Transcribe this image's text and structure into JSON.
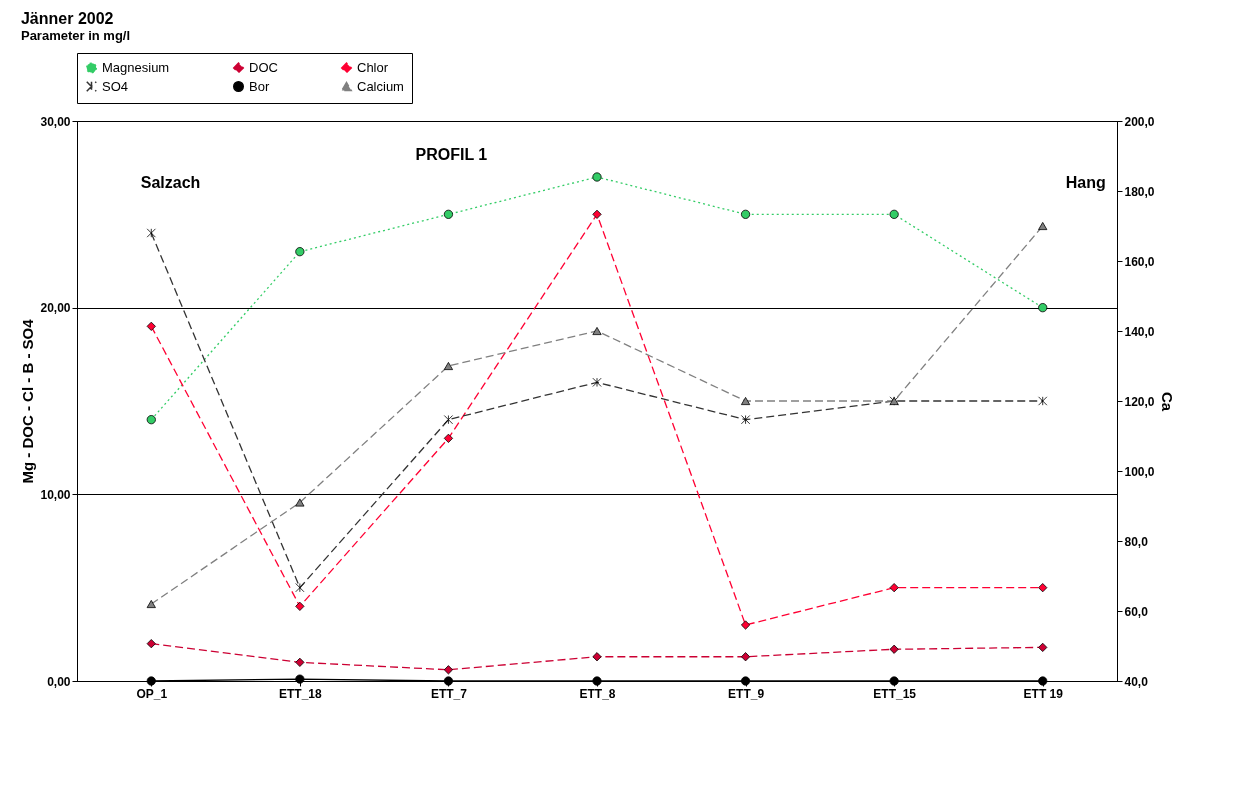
{
  "chart_data": {
    "type": "line",
    "title": "Jänner 2002",
    "subtitle": "Parameter in mg/l",
    "ylabel": "Mg - DOC - Cl - B - SO4",
    "y2label": "Ca",
    "categories": [
      "OP_1",
      "ETT_18",
      "ETT_7",
      "ETT_8",
      "ETT_9",
      "ETT_15",
      "ETT 19"
    ],
    "series": [
      {
        "name": "Magnesium",
        "color": "#33cc66",
        "marker": "circle",
        "line_style": "dotted",
        "values": [
          14,
          23,
          25,
          27,
          25,
          25,
          20
        ]
      },
      {
        "name": "DOC",
        "color": "#cc0033",
        "marker": "diamond",
        "line_style": "dashed",
        "values": [
          2.0,
          1.0,
          0.6,
          1.3,
          1.3,
          1.7,
          1.8
        ]
      },
      {
        "name": "Chlor",
        "color": "#ff0033",
        "marker": "diamond",
        "line_style": "dashed",
        "values": [
          19,
          4,
          13,
          25,
          3,
          5,
          5
        ]
      },
      {
        "name": "SO4",
        "color": "#333333",
        "marker": "cross",
        "line_style": "dashed",
        "values": [
          24,
          5,
          14,
          16,
          14,
          15,
          15
        ]
      },
      {
        "name": "Bor",
        "color": "#000000",
        "marker": "circle",
        "line_style": "solid",
        "values": [
          0,
          0.1,
          0,
          0,
          0,
          0,
          0
        ]
      },
      {
        "name": "Calcium",
        "color": "#808080",
        "marker": "triangle",
        "line_style": "dashed",
        "axis": "y2",
        "values": [
          62,
          91,
          130,
          140,
          120,
          120,
          170
        ]
      }
    ],
    "ylim": [
      0,
      30
    ],
    "yticks": [
      {
        "value": 0,
        "label": "0,00"
      },
      {
        "value": 10,
        "label": "10,00"
      },
      {
        "value": 20,
        "label": "20,00"
      },
      {
        "value": 30,
        "label": "30,00"
      }
    ],
    "y2lim": [
      40,
      200
    ],
    "y2ticks": [
      {
        "value": 40,
        "label": "40,0"
      },
      {
        "value": 60,
        "label": "60,0"
      },
      {
        "value": 80,
        "label": "80,0"
      },
      {
        "value": 100,
        "label": "100,0"
      },
      {
        "value": 120,
        "label": "120,0"
      },
      {
        "value": 140,
        "label": "140,0"
      },
      {
        "value": 160,
        "label": "160,0"
      },
      {
        "value": 180,
        "label": "180,0"
      },
      {
        "value": 200,
        "label": "200,0"
      }
    ],
    "grid": "y",
    "legend": "top",
    "annotations": [
      "PROFIL 1",
      "Salzach",
      "Hang"
    ]
  }
}
